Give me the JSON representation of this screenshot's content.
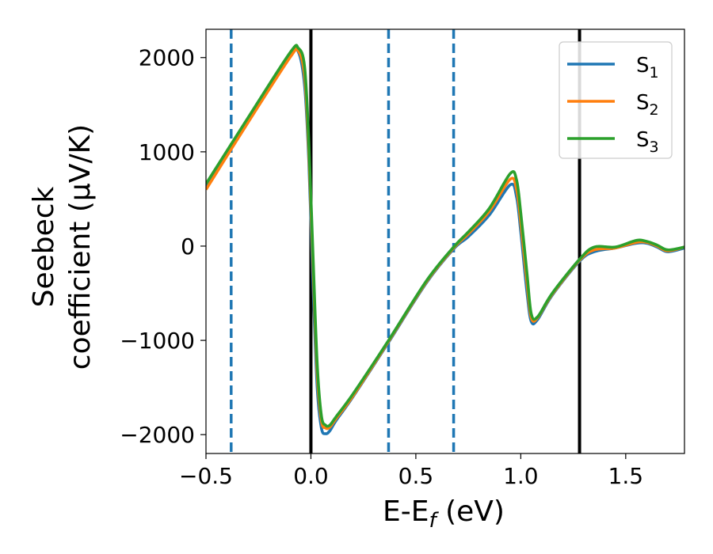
{
  "chart_data": {
    "type": "line",
    "xlabel": "E-E",
    "xlabel_sub": "f",
    "xlabel_unit": " (eV)",
    "ylabel_line1": "Seebeck",
    "ylabel_line2": "coefficient  (μV/K)",
    "xlim": [
      -0.5,
      1.78
    ],
    "ylim": [
      -2200,
      2300
    ],
    "xticks": [
      -0.5,
      0.0,
      0.5,
      1.0,
      1.5
    ],
    "xtick_labels": [
      "−0.5",
      "0.0",
      "0.5",
      "1.0",
      "1.5"
    ],
    "yticks": [
      -2000,
      -1000,
      0,
      1000,
      2000
    ],
    "ytick_labels": [
      "−2000",
      "−1000",
      "0",
      "1000",
      "2000"
    ],
    "grid": false,
    "legend_position": "top-right",
    "vertical_lines": {
      "solid": [
        0.0,
        1.28
      ],
      "dashed": [
        -0.38,
        0.37,
        0.68
      ]
    },
    "series": [
      {
        "name": "S",
        "name_sub": "1",
        "color": "#1f77b4",
        "x": [
          -0.5,
          -0.3,
          -0.1,
          -0.06,
          -0.03,
          -0.01,
          0.01,
          0.03,
          0.05,
          0.07,
          0.09,
          0.12,
          0.2,
          0.37,
          0.55,
          0.68,
          0.75,
          0.85,
          0.95,
          0.98,
          1.0,
          1.03,
          1.05,
          1.08,
          1.15,
          1.28,
          1.35,
          1.45,
          1.55,
          1.6,
          1.65,
          1.7,
          1.78
        ],
        "y": [
          620,
          1330,
          2020,
          2060,
          1700,
          900,
          -400,
          -1500,
          -1930,
          -1990,
          -1960,
          -1850,
          -1600,
          -1020,
          -390,
          -30,
          100,
          330,
          650,
          520,
          150,
          -500,
          -800,
          -780,
          -520,
          -160,
          -60,
          -20,
          30,
          30,
          -10,
          -60,
          -20
        ]
      },
      {
        "name": "S",
        "name_sub": "2",
        "color": "#ff7f0e",
        "x": [
          -0.5,
          -0.3,
          -0.1,
          -0.06,
          -0.03,
          -0.01,
          0.01,
          0.03,
          0.05,
          0.07,
          0.09,
          0.12,
          0.2,
          0.37,
          0.55,
          0.68,
          0.75,
          0.85,
          0.95,
          0.98,
          1.0,
          1.03,
          1.05,
          1.08,
          1.15,
          1.28,
          1.35,
          1.45,
          1.55,
          1.6,
          1.65,
          1.7,
          1.78
        ],
        "y": [
          600,
          1310,
          2000,
          2070,
          1800,
          1000,
          -200,
          -1350,
          -1850,
          -1930,
          -1920,
          -1830,
          -1590,
          -1010,
          -380,
          -20,
          130,
          370,
          710,
          600,
          250,
          -400,
          -760,
          -760,
          -510,
          -150,
          -40,
          -20,
          40,
          40,
          0,
          -50,
          -10
        ]
      },
      {
        "name": "S",
        "name_sub": "3",
        "color": "#2ca02c",
        "x": [
          -0.5,
          -0.3,
          -0.1,
          -0.06,
          -0.03,
          -0.01,
          0.01,
          0.03,
          0.05,
          0.07,
          0.09,
          0.12,
          0.2,
          0.37,
          0.55,
          0.68,
          0.75,
          0.85,
          0.95,
          0.98,
          1.0,
          1.03,
          1.05,
          1.08,
          1.15,
          1.28,
          1.35,
          1.45,
          1.55,
          1.6,
          1.65,
          1.7,
          1.78
        ],
        "y": [
          660,
          1360,
          2050,
          2100,
          1900,
          1100,
          -100,
          -1250,
          -1800,
          -1900,
          -1900,
          -1810,
          -1570,
          -1000,
          -370,
          -10,
          150,
          400,
          770,
          700,
          350,
          -300,
          -720,
          -750,
          -500,
          -140,
          -10,
          -10,
          60,
          50,
          10,
          -40,
          -10
        ]
      }
    ]
  }
}
